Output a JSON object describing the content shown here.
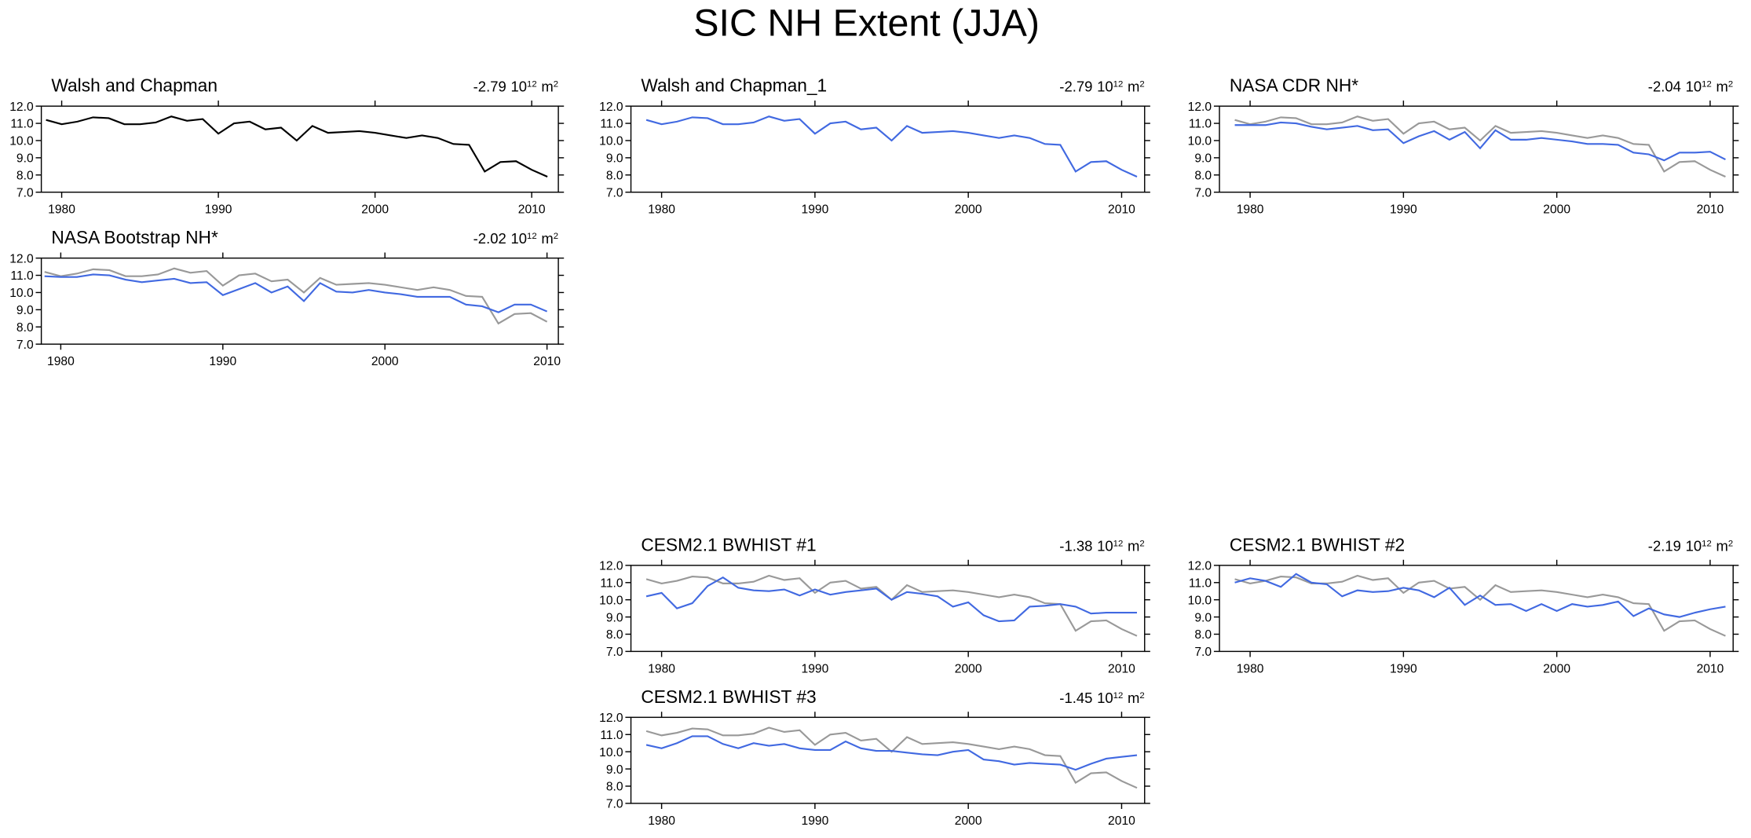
{
  "title": "SIC NH Extent (JJA)",
  "chart_data": [
    {
      "type": "line",
      "title": "Walsh and Chapman",
      "trend": -2.79,
      "trend_base": "10",
      "trend_exponent": "12",
      "trend_unit": "m",
      "trend_unit_exponent": "2",
      "x": [
        1979,
        1980,
        1981,
        1982,
        1983,
        1984,
        1985,
        1986,
        1987,
        1988,
        1989,
        1990,
        1991,
        1992,
        1993,
        1994,
        1995,
        1996,
        1997,
        1998,
        1999,
        2000,
        2001,
        2002,
        2003,
        2004,
        2005,
        2006,
        2007,
        2008,
        2009,
        2010,
        2011
      ],
      "xlim": [
        1978.7,
        2011.7
      ],
      "xticks": [
        1980,
        1990,
        2000,
        2010
      ],
      "ylim": [
        7,
        12
      ],
      "yticks": [
        {
          "value": 7,
          "label": "7.0"
        },
        {
          "value": 8,
          "label": "8.0"
        },
        {
          "value": 9,
          "label": "9.0"
        },
        {
          "value": 10,
          "label": "10.0"
        },
        {
          "value": 11,
          "label": "11.0"
        },
        {
          "value": 12,
          "label": "12.0"
        }
      ],
      "series": [
        {
          "color": "#000000",
          "values": [
            11.2,
            10.95,
            11.1,
            11.35,
            11.3,
            10.95,
            10.95,
            11.05,
            11.4,
            11.15,
            11.25,
            10.4,
            11.0,
            11.1,
            10.65,
            10.75,
            10.0,
            10.85,
            10.45,
            10.5,
            10.55,
            10.45,
            10.3,
            10.15,
            10.3,
            10.15,
            9.8,
            9.75,
            8.2,
            8.75,
            8.8,
            8.3,
            7.9
          ]
        }
      ]
    },
    {
      "type": "line",
      "title": "Walsh and Chapman_1",
      "trend": -2.79,
      "trend_base": "10",
      "trend_exponent": "12",
      "trend_unit": "m",
      "trend_unit_exponent": "2",
      "x": [
        1979,
        1980,
        1981,
        1982,
        1983,
        1984,
        1985,
        1986,
        1987,
        1988,
        1989,
        1990,
        1991,
        1992,
        1993,
        1994,
        1995,
        1996,
        1997,
        1998,
        1999,
        2000,
        2001,
        2002,
        2003,
        2004,
        2005,
        2006,
        2007,
        2008,
        2009,
        2010,
        2011
      ],
      "xlim": [
        1978,
        2011.5
      ],
      "xticks": [
        1980,
        1990,
        2000,
        2010
      ],
      "ylim": [
        7,
        12
      ],
      "yticks": [
        {
          "value": 7,
          "label": "7.0"
        },
        {
          "value": 8,
          "label": "8.0"
        },
        {
          "value": 9,
          "label": "9.0"
        },
        {
          "value": 10,
          "label": "10.0"
        },
        {
          "value": 11,
          "label": "11.0"
        },
        {
          "value": 12,
          "label": "12.0"
        }
      ],
      "series": [
        {
          "color": "#4169e1",
          "values": [
            11.2,
            10.95,
            11.1,
            11.35,
            11.3,
            10.95,
            10.95,
            11.05,
            11.4,
            11.15,
            11.25,
            10.4,
            11.0,
            11.1,
            10.65,
            10.75,
            10.0,
            10.85,
            10.45,
            10.5,
            10.55,
            10.45,
            10.3,
            10.15,
            10.3,
            10.15,
            9.8,
            9.75,
            8.2,
            8.75,
            8.8,
            8.3,
            7.9
          ]
        }
      ]
    },
    {
      "type": "line",
      "title": "NASA CDR NH*",
      "trend": -2.04,
      "trend_base": "10",
      "trend_exponent": "12",
      "trend_unit": "m",
      "trend_unit_exponent": "2",
      "x": [
        1979,
        1980,
        1981,
        1982,
        1983,
        1984,
        1985,
        1986,
        1987,
        1988,
        1989,
        1990,
        1991,
        1992,
        1993,
        1994,
        1995,
        1996,
        1997,
        1998,
        1999,
        2000,
        2001,
        2002,
        2003,
        2004,
        2005,
        2006,
        2007,
        2008,
        2009,
        2010,
        2011
      ],
      "xlim": [
        1978,
        2011.5
      ],
      "xticks": [
        1980,
        1990,
        2000,
        2010
      ],
      "ylim": [
        7,
        12
      ],
      "yticks": [
        {
          "value": 7,
          "label": "7.0"
        },
        {
          "value": 8,
          "label": "8.0"
        },
        {
          "value": 9,
          "label": "9.0"
        },
        {
          "value": 10,
          "label": "10.0"
        },
        {
          "value": 11,
          "label": "11.0"
        },
        {
          "value": 12,
          "label": "12.0"
        }
      ],
      "series": [
        {
          "color": "#999999",
          "values": [
            11.2,
            10.95,
            11.1,
            11.35,
            11.3,
            10.95,
            10.95,
            11.05,
            11.4,
            11.15,
            11.25,
            10.4,
            11.0,
            11.1,
            10.65,
            10.75,
            10.0,
            10.85,
            10.45,
            10.5,
            10.55,
            10.45,
            10.3,
            10.15,
            10.3,
            10.15,
            9.8,
            9.75,
            8.2,
            8.75,
            8.8,
            8.3,
            7.9
          ]
        },
        {
          "color": "#4169e1",
          "values": [
            10.9,
            10.9,
            10.9,
            11.05,
            11.0,
            10.8,
            10.65,
            10.75,
            10.85,
            10.6,
            10.65,
            9.85,
            10.25,
            10.55,
            10.05,
            10.5,
            9.55,
            10.6,
            10.05,
            10.05,
            10.15,
            10.05,
            9.95,
            9.8,
            9.8,
            9.75,
            9.3,
            9.2,
            8.85,
            9.3,
            9.3,
            9.35,
            8.9
          ]
        }
      ]
    },
    {
      "type": "line",
      "title": "NASA Bootstrap NH*",
      "trend": -2.02,
      "trend_base": "10",
      "trend_exponent": "12",
      "trend_unit": "m",
      "trend_unit_exponent": "2",
      "x": [
        1979,
        1980,
        1981,
        1982,
        1983,
        1984,
        1985,
        1986,
        1987,
        1988,
        1989,
        1990,
        1991,
        1992,
        1993,
        1994,
        1995,
        1996,
        1997,
        1998,
        1999,
        2000,
        2001,
        2002,
        2003,
        2004,
        2005,
        2006,
        2007,
        2008,
        2009,
        2010
      ],
      "xlim": [
        1978.8,
        2010.7
      ],
      "xticks": [
        1980,
        1990,
        2000,
        2010
      ],
      "ylim": [
        7,
        12
      ],
      "yticks": [
        {
          "value": 7,
          "label": "7.0"
        },
        {
          "value": 8,
          "label": "8.0"
        },
        {
          "value": 9,
          "label": "9.0"
        },
        {
          "value": 10,
          "label": "10.0"
        },
        {
          "value": 11,
          "label": "11.0"
        },
        {
          "value": 12,
          "label": "12.0"
        }
      ],
      "series": [
        {
          "color": "#999999",
          "values": [
            11.2,
            10.95,
            11.1,
            11.35,
            11.3,
            10.95,
            10.95,
            11.05,
            11.4,
            11.15,
            11.25,
            10.4,
            11.0,
            11.1,
            10.65,
            10.75,
            10.0,
            10.85,
            10.45,
            10.5,
            10.55,
            10.45,
            10.3,
            10.15,
            10.3,
            10.15,
            9.8,
            9.75,
            8.2,
            8.75,
            8.8,
            8.3
          ]
        },
        {
          "color": "#4169e1",
          "values": [
            10.95,
            10.9,
            10.9,
            11.05,
            11.0,
            10.75,
            10.6,
            10.7,
            10.8,
            10.55,
            10.6,
            9.85,
            10.2,
            10.55,
            10.0,
            10.35,
            9.5,
            10.55,
            10.05,
            10.0,
            10.15,
            10.0,
            9.9,
            9.75,
            9.75,
            9.75,
            9.3,
            9.2,
            8.85,
            9.3,
            9.3,
            8.9
          ]
        }
      ]
    },
    {
      "type": "line",
      "title": "CESM2.1 BWHIST #1",
      "trend": -1.38,
      "trend_base": "10",
      "trend_exponent": "12",
      "trend_unit": "m",
      "trend_unit_exponent": "2",
      "x": [
        1979,
        1980,
        1981,
        1982,
        1983,
        1984,
        1985,
        1986,
        1987,
        1988,
        1989,
        1990,
        1991,
        1992,
        1993,
        1994,
        1995,
        1996,
        1997,
        1998,
        1999,
        2000,
        2001,
        2002,
        2003,
        2004,
        2005,
        2006,
        2007,
        2008,
        2009,
        2010,
        2011
      ],
      "xlim": [
        1978,
        2011.5
      ],
      "xticks": [
        1980,
        1990,
        2000,
        2010
      ],
      "ylim": [
        7,
        12
      ],
      "yticks": [
        {
          "value": 7,
          "label": "7.0"
        },
        {
          "value": 8,
          "label": "8.0"
        },
        {
          "value": 9,
          "label": "9.0"
        },
        {
          "value": 10,
          "label": "10.0"
        },
        {
          "value": 11,
          "label": "11.0"
        },
        {
          "value": 12,
          "label": "12.0"
        }
      ],
      "series": [
        {
          "color": "#999999",
          "values": [
            11.2,
            10.95,
            11.1,
            11.35,
            11.3,
            10.95,
            10.95,
            11.05,
            11.4,
            11.15,
            11.25,
            10.4,
            11.0,
            11.1,
            10.65,
            10.75,
            10.0,
            10.85,
            10.45,
            10.5,
            10.55,
            10.45,
            10.3,
            10.15,
            10.3,
            10.15,
            9.8,
            9.75,
            8.2,
            8.75,
            8.8,
            8.3,
            7.9
          ]
        },
        {
          "color": "#4169e1",
          "values": [
            10.2,
            10.4,
            9.5,
            9.8,
            10.8,
            11.3,
            10.7,
            10.55,
            10.5,
            10.6,
            10.25,
            10.6,
            10.3,
            10.45,
            10.55,
            10.65,
            10.0,
            10.45,
            10.35,
            10.2,
            9.6,
            9.85,
            9.1,
            8.75,
            8.8,
            9.6,
            9.65,
            9.75,
            9.6,
            9.2,
            9.25,
            9.25,
            9.25
          ]
        }
      ]
    },
    {
      "type": "line",
      "title": "CESM2.1 BWHIST #2",
      "trend": -2.19,
      "trend_base": "10",
      "trend_exponent": "12",
      "trend_unit": "m",
      "trend_unit_exponent": "2",
      "x": [
        1979,
        1980,
        1981,
        1982,
        1983,
        1984,
        1985,
        1986,
        1987,
        1988,
        1989,
        1990,
        1991,
        1992,
        1993,
        1994,
        1995,
        1996,
        1997,
        1998,
        1999,
        2000,
        2001,
        2002,
        2003,
        2004,
        2005,
        2006,
        2007,
        2008,
        2009,
        2010,
        2011
      ],
      "xlim": [
        1978,
        2011.5
      ],
      "xticks": [
        1980,
        1990,
        2000,
        2010
      ],
      "ylim": [
        7,
        12
      ],
      "yticks": [
        {
          "value": 7,
          "label": "7.0"
        },
        {
          "value": 8,
          "label": "8.0"
        },
        {
          "value": 9,
          "label": "9.0"
        },
        {
          "value": 10,
          "label": "10.0"
        },
        {
          "value": 11,
          "label": "11.0"
        },
        {
          "value": 12,
          "label": "12.0"
        }
      ],
      "series": [
        {
          "color": "#999999",
          "values": [
            11.2,
            10.95,
            11.1,
            11.35,
            11.3,
            10.95,
            10.95,
            11.05,
            11.4,
            11.15,
            11.25,
            10.4,
            11.0,
            11.1,
            10.65,
            10.75,
            10.0,
            10.85,
            10.45,
            10.5,
            10.55,
            10.45,
            10.3,
            10.15,
            10.3,
            10.15,
            9.8,
            9.75,
            8.2,
            8.75,
            8.8,
            8.3,
            7.9
          ]
        },
        {
          "color": "#4169e1",
          "values": [
            11.0,
            11.25,
            11.1,
            10.75,
            11.5,
            11.0,
            10.9,
            10.2,
            10.55,
            10.45,
            10.5,
            10.7,
            10.55,
            10.15,
            10.7,
            9.7,
            10.25,
            9.7,
            9.75,
            9.35,
            9.75,
            9.35,
            9.75,
            9.6,
            9.7,
            9.9,
            9.05,
            9.5,
            9.15,
            9.0,
            9.25,
            9.45,
            9.6
          ]
        }
      ]
    },
    {
      "type": "line",
      "title": "CESM2.1 BWHIST #3",
      "trend": -1.45,
      "trend_base": "10",
      "trend_exponent": "12",
      "trend_unit": "m",
      "trend_unit_exponent": "2",
      "x": [
        1979,
        1980,
        1981,
        1982,
        1983,
        1984,
        1985,
        1986,
        1987,
        1988,
        1989,
        1990,
        1991,
        1992,
        1993,
        1994,
        1995,
        1996,
        1997,
        1998,
        1999,
        2000,
        2001,
        2002,
        2003,
        2004,
        2005,
        2006,
        2007,
        2008,
        2009,
        2010,
        2011
      ],
      "xlim": [
        1978,
        2011.5
      ],
      "xticks": [
        1980,
        1990,
        2000,
        2010
      ],
      "ylim": [
        7,
        12
      ],
      "yticks": [
        {
          "value": 7,
          "label": "7.0"
        },
        {
          "value": 8,
          "label": "8.0"
        },
        {
          "value": 9,
          "label": "9.0"
        },
        {
          "value": 10,
          "label": "10.0"
        },
        {
          "value": 11,
          "label": "11.0"
        },
        {
          "value": 12,
          "label": "12.0"
        }
      ],
      "series": [
        {
          "color": "#999999",
          "values": [
            11.2,
            10.95,
            11.1,
            11.35,
            11.3,
            10.95,
            10.95,
            11.05,
            11.4,
            11.15,
            11.25,
            10.4,
            11.0,
            11.1,
            10.65,
            10.75,
            10.0,
            10.85,
            10.45,
            10.5,
            10.55,
            10.45,
            10.3,
            10.15,
            10.3,
            10.15,
            9.8,
            9.75,
            8.2,
            8.75,
            8.8,
            8.3,
            7.9
          ]
        },
        {
          "color": "#4169e1",
          "values": [
            10.4,
            10.2,
            10.5,
            10.9,
            10.9,
            10.45,
            10.2,
            10.5,
            10.35,
            10.45,
            10.2,
            10.1,
            10.1,
            10.6,
            10.2,
            10.05,
            10.05,
            9.95,
            9.85,
            9.8,
            10.0,
            10.1,
            9.55,
            9.45,
            9.25,
            9.35,
            9.3,
            9.25,
            8.95,
            9.3,
            9.6,
            9.7,
            9.8
          ]
        }
      ]
    }
  ]
}
